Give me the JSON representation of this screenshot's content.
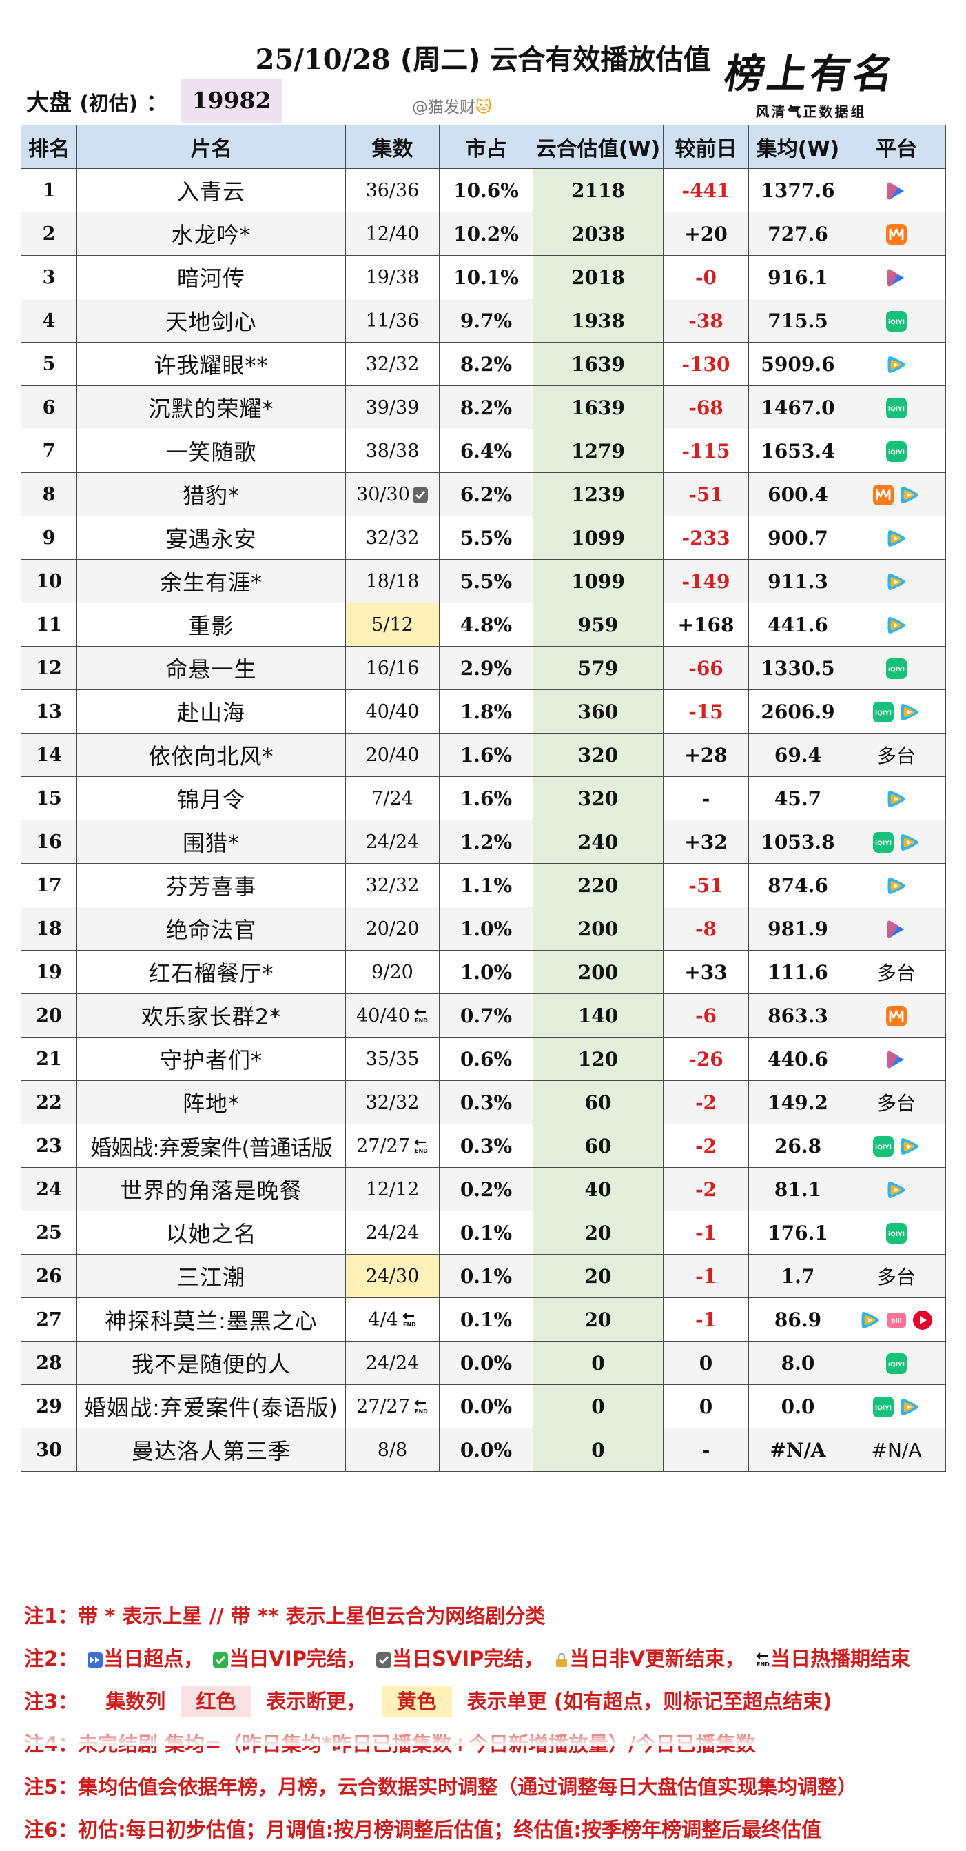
{
  "header": {
    "title_date": "25/10/28",
    "title_weekday": "(周二)",
    "title_text": "云合有效播放估值",
    "market_label": "大盘",
    "market_sub": "(初估)",
    "market_colon": "：",
    "market_value": "19982",
    "author": "@猫发财",
    "logo_text": "榜上有名",
    "logo_sub": "风清气正数据组"
  },
  "columns": [
    "排名",
    "片名",
    "集数",
    "市占",
    "云合估值(W)",
    "较前日",
    "集均(W)",
    "平台"
  ],
  "rows": [
    {
      "rank": "1",
      "name": "入青云",
      "eps": "36/36",
      "mark": "",
      "share": "10.6%",
      "est": "2118",
      "change": "-441",
      "neg": true,
      "avg": "1377.6",
      "platforms": [
        "youku"
      ],
      "platform_text": ""
    },
    {
      "rank": "2",
      "name": "水龙吟*",
      "eps": "12/40",
      "mark": "",
      "share": "10.2%",
      "est": "2038",
      "change": "+20",
      "neg": false,
      "avg": "727.6",
      "platforms": [
        "mango"
      ],
      "platform_text": ""
    },
    {
      "rank": "3",
      "name": "暗河传",
      "eps": "19/38",
      "mark": "",
      "share": "10.1%",
      "est": "2018",
      "change": "-0",
      "neg": true,
      "avg": "916.1",
      "platforms": [
        "youku"
      ],
      "platform_text": ""
    },
    {
      "rank": "4",
      "name": "天地剑心",
      "eps": "11/36",
      "mark": "",
      "share": "9.7%",
      "est": "1938",
      "change": "-38",
      "neg": true,
      "avg": "715.5",
      "platforms": [
        "iqiyi"
      ],
      "platform_text": ""
    },
    {
      "rank": "5",
      "name": "许我耀眼**",
      "eps": "32/32",
      "mark": "",
      "share": "8.2%",
      "est": "1639",
      "change": "-130",
      "neg": true,
      "avg": "5909.6",
      "platforms": [
        "tencent"
      ],
      "platform_text": ""
    },
    {
      "rank": "6",
      "name": "沉默的荣耀*",
      "eps": "39/39",
      "mark": "",
      "share": "8.2%",
      "est": "1639",
      "change": "-68",
      "neg": true,
      "avg": "1467.0",
      "platforms": [
        "iqiyi"
      ],
      "platform_text": ""
    },
    {
      "rank": "7",
      "name": "一笑随歌",
      "eps": "38/38",
      "mark": "",
      "share": "6.4%",
      "est": "1279",
      "change": "-115",
      "neg": true,
      "avg": "1653.4",
      "platforms": [
        "iqiyi"
      ],
      "platform_text": ""
    },
    {
      "rank": "8",
      "name": "猎豹*",
      "eps": "30/30",
      "mark": "svip",
      "share": "6.2%",
      "est": "1239",
      "change": "-51",
      "neg": true,
      "avg": "600.4",
      "platforms": [
        "mango",
        "tencent"
      ],
      "platform_text": ""
    },
    {
      "rank": "9",
      "name": "宴遇永安",
      "eps": "32/32",
      "mark": "",
      "share": "5.5%",
      "est": "1099",
      "change": "-233",
      "neg": true,
      "avg": "900.7",
      "platforms": [
        "tencent"
      ],
      "platform_text": ""
    },
    {
      "rank": "10",
      "name": "余生有涯*",
      "eps": "18/18",
      "mark": "",
      "share": "5.5%",
      "est": "1099",
      "change": "-149",
      "neg": true,
      "avg": "911.3",
      "platforms": [
        "tencent"
      ],
      "platform_text": ""
    },
    {
      "rank": "11",
      "name": "重影",
      "eps": "5/12",
      "mark": "",
      "eps_yellow": true,
      "share": "4.8%",
      "est": "959",
      "change": "+168",
      "neg": false,
      "avg": "441.6",
      "platforms": [
        "tencent"
      ],
      "platform_text": ""
    },
    {
      "rank": "12",
      "name": "命悬一生",
      "eps": "16/16",
      "mark": "",
      "share": "2.9%",
      "est": "579",
      "change": "-66",
      "neg": true,
      "avg": "1330.5",
      "platforms": [
        "iqiyi"
      ],
      "platform_text": ""
    },
    {
      "rank": "13",
      "name": "赴山海",
      "eps": "40/40",
      "mark": "",
      "share": "1.8%",
      "est": "360",
      "change": "-15",
      "neg": true,
      "avg": "2606.9",
      "platforms": [
        "iqiyi",
        "tencent"
      ],
      "platform_text": ""
    },
    {
      "rank": "14",
      "name": "依依向北风*",
      "eps": "20/40",
      "mark": "",
      "share": "1.6%",
      "est": "320",
      "change": "+28",
      "neg": false,
      "avg": "69.4",
      "platforms": [],
      "platform_text": "多台"
    },
    {
      "rank": "15",
      "name": "锦月令",
      "eps": "7/24",
      "mark": "",
      "share": "1.6%",
      "est": "320",
      "change": "-",
      "neg": false,
      "avg": "45.7",
      "platforms": [
        "tencent"
      ],
      "platform_text": ""
    },
    {
      "rank": "16",
      "name": "围猎*",
      "eps": "24/24",
      "mark": "",
      "share": "1.2%",
      "est": "240",
      "change": "+32",
      "neg": false,
      "avg": "1053.8",
      "platforms": [
        "iqiyi",
        "tencent"
      ],
      "platform_text": ""
    },
    {
      "rank": "17",
      "name": "芬芳喜事",
      "eps": "32/32",
      "mark": "",
      "share": "1.1%",
      "est": "220",
      "change": "-51",
      "neg": true,
      "avg": "874.6",
      "platforms": [
        "tencent"
      ],
      "platform_text": ""
    },
    {
      "rank": "18",
      "name": "绝命法官",
      "eps": "20/20",
      "mark": "",
      "share": "1.0%",
      "est": "200",
      "change": "-8",
      "neg": true,
      "avg": "981.9",
      "platforms": [
        "youku"
      ],
      "platform_text": ""
    },
    {
      "rank": "19",
      "name": "红石榴餐厅*",
      "eps": "9/20",
      "mark": "",
      "share": "1.0%",
      "est": "200",
      "change": "+33",
      "neg": false,
      "avg": "111.6",
      "platforms": [],
      "platform_text": "多台"
    },
    {
      "rank": "20",
      "name": "欢乐家长群2*",
      "eps": "40/40",
      "mark": "end",
      "share": "0.7%",
      "est": "140",
      "change": "-6",
      "neg": true,
      "avg": "863.3",
      "platforms": [
        "mango"
      ],
      "platform_text": ""
    },
    {
      "rank": "21",
      "name": "守护者们*",
      "eps": "35/35",
      "mark": "",
      "share": "0.6%",
      "est": "120",
      "change": "-26",
      "neg": true,
      "avg": "440.6",
      "platforms": [
        "youku"
      ],
      "platform_text": ""
    },
    {
      "rank": "22",
      "name": "阵地*",
      "eps": "32/32",
      "mark": "",
      "share": "0.3%",
      "est": "60",
      "change": "-2",
      "neg": true,
      "avg": "149.2",
      "platforms": [],
      "platform_text": "多台"
    },
    {
      "rank": "23",
      "name": "婚姻战:弃爱案件(普通话版",
      "eps": "27/27",
      "mark": "end",
      "share": "0.3%",
      "est": "60",
      "change": "-2",
      "neg": true,
      "avg": "26.8",
      "platforms": [
        "iqiyi",
        "tencent"
      ],
      "platform_text": "",
      "tight": true
    },
    {
      "rank": "24",
      "name": "世界的角落是晚餐",
      "eps": "12/12",
      "mark": "",
      "share": "0.2%",
      "est": "40",
      "change": "-2",
      "neg": true,
      "avg": "81.1",
      "platforms": [
        "tencent"
      ],
      "platform_text": ""
    },
    {
      "rank": "25",
      "name": "以她之名",
      "eps": "24/24",
      "mark": "",
      "share": "0.1%",
      "est": "20",
      "change": "-1",
      "neg": true,
      "avg": "176.1",
      "platforms": [
        "iqiyi"
      ],
      "platform_text": ""
    },
    {
      "rank": "26",
      "name": "三江潮",
      "eps": "24/30",
      "mark": "",
      "eps_yellow": true,
      "share": "0.1%",
      "est": "20",
      "change": "-1",
      "neg": true,
      "avg": "1.7",
      "platforms": [],
      "platform_text": "多台"
    },
    {
      "rank": "27",
      "name": "神探科莫兰:墨黑之心",
      "eps": "4/4",
      "mark": "end",
      "share": "0.1%",
      "est": "20",
      "change": "-1",
      "neg": true,
      "avg": "86.9",
      "platforms": [
        "tencent",
        "bilibili",
        "other"
      ],
      "platform_text": ""
    },
    {
      "rank": "28",
      "name": "我不是随便的人",
      "eps": "24/24",
      "mark": "",
      "share": "0.0%",
      "est": "0",
      "change": "0",
      "neg": false,
      "avg": "8.0",
      "platforms": [
        "iqiyi"
      ],
      "platform_text": ""
    },
    {
      "rank": "29",
      "name": "婚姻战:弃爱案件(泰语版)",
      "eps": "27/27",
      "mark": "end",
      "share": "0.0%",
      "est": "0",
      "change": "0",
      "neg": false,
      "avg": "0.0",
      "platforms": [
        "iqiyi",
        "tencent"
      ],
      "platform_text": ""
    },
    {
      "rank": "30",
      "name": "曼达洛人第三季",
      "eps": "8/8",
      "mark": "",
      "share": "0.0%",
      "est": "0",
      "change": "-",
      "neg": false,
      "avg": "#N/A",
      "platforms": [],
      "platform_text": "#N/A"
    }
  ],
  "notes": {
    "n1": "注1：带 * 表示上星 // 带 ** 表示上星但云合为网络剧分类",
    "n2_prefix": "注2：",
    "n2_a": "当日超点，",
    "n2_b": "当日VIP完结，",
    "n2_c": "当日SVIP完结，",
    "n2_d": "当日非V更新结束，",
    "n2_e": "当日热播期结束",
    "n3_prefix": "注3：",
    "n3_a": "集数列",
    "n3_red": "红色",
    "n3_b": "表示断更，",
    "n3_yellow": "黄色",
    "n3_c": "表示单更  (如有超点，则标记至超点结束)",
    "n4": "注4：未完结剧 集均=（昨日集均*昨日已播集数+今日新增播放量）/今日已播集数",
    "n5": "注5：集均估值会依据年榜，月榜，云合数据实时调整（通过调整每日大盘估值实现集均调整）",
    "n6": "注6：初估:每日初步估值；月调值:按月榜调整后估值；终估值:按季榜年榜调整后最终估值"
  },
  "colors": {
    "header_bg": "#cfe0f3",
    "estimate_bg": "#e2efda",
    "negative": "#d61f1f",
    "note_red": "#cf1c1c",
    "yellow_mark": "#fff1b8",
    "market_bg": "#efe3f2"
  }
}
